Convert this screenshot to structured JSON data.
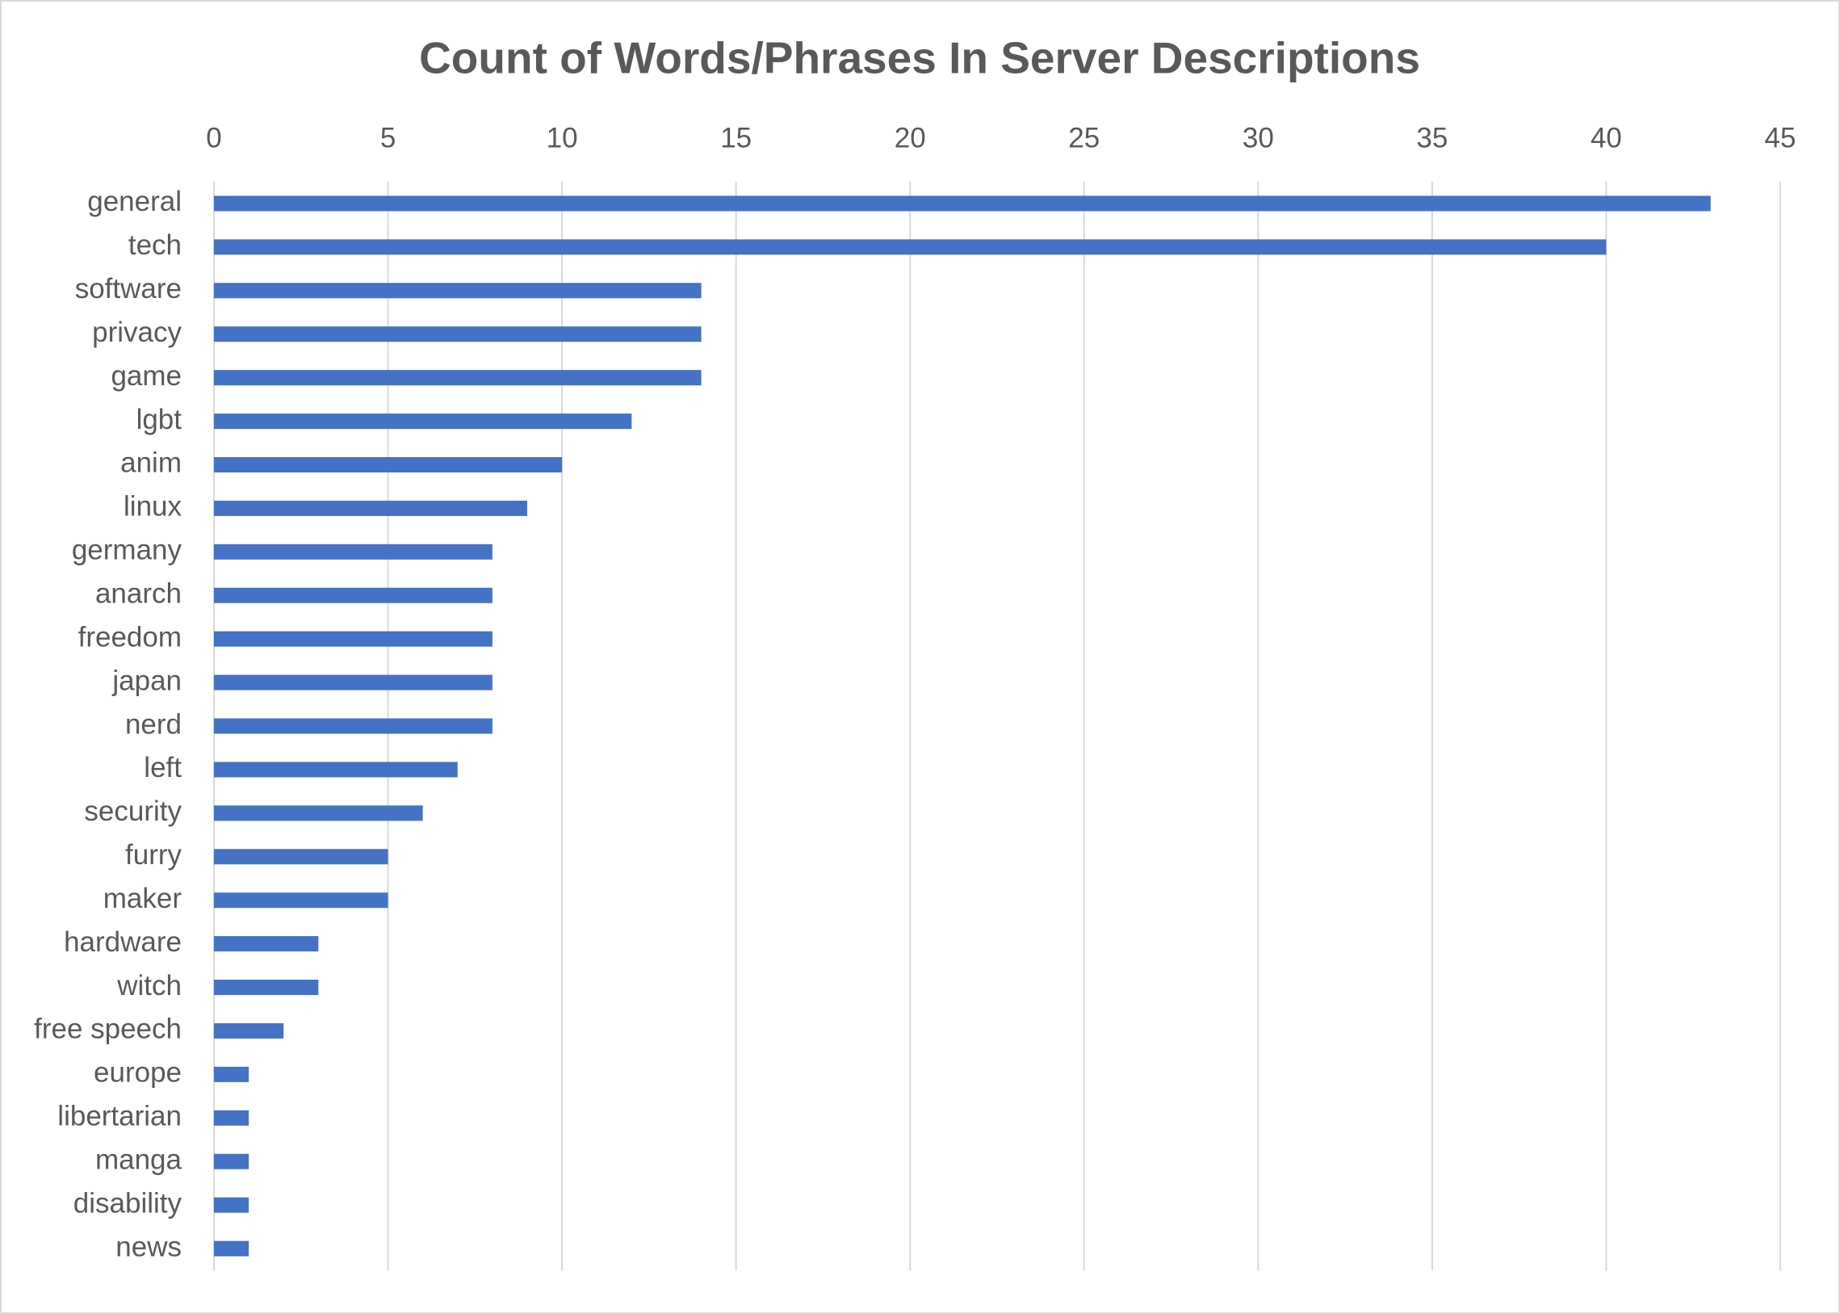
{
  "chart_data": {
    "type": "bar",
    "orientation": "horizontal",
    "title": "Count of Words/Phrases In Server Descriptions",
    "categories": [
      "general",
      "tech",
      "software",
      "privacy",
      "game",
      "lgbt",
      "anim",
      "linux",
      "germany",
      "anarch",
      "freedom",
      "japan",
      "nerd",
      "left",
      "security",
      "furry",
      "maker",
      "hardware",
      "witch",
      "free speech",
      "europe",
      "libertarian",
      "manga",
      "disability",
      "news"
    ],
    "values": [
      43,
      40,
      14,
      14,
      14,
      12,
      10,
      9,
      8,
      8,
      8,
      8,
      8,
      7,
      6,
      5,
      5,
      3,
      3,
      2,
      1,
      1,
      1,
      1,
      1
    ],
    "color": "#4472c4",
    "xlim": [
      0,
      45
    ],
    "xticks": [
      0,
      5,
      10,
      15,
      20,
      25,
      30,
      35,
      40,
      45
    ],
    "grid": true
  }
}
